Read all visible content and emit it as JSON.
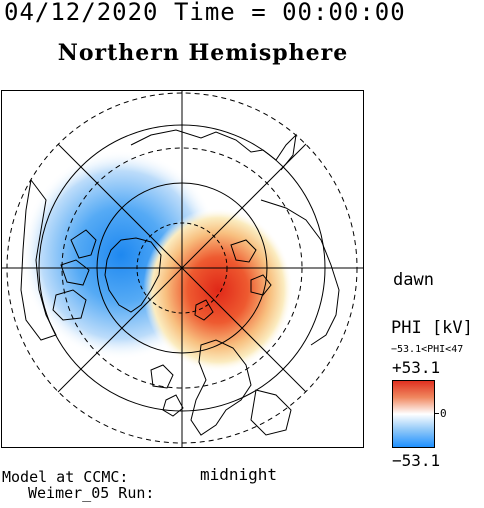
{
  "header": {
    "date_time": "04/12/2020 Time = 00:00:00",
    "hemisphere": "Northern Hemisphere"
  },
  "map": {
    "projection": "polar stereographic, north pole centered",
    "orientation_labels": {
      "right": "dawn",
      "bottom": "midnight"
    },
    "pattern": {
      "negative_cell": "dusk side, blue (left)",
      "positive_cell": "dawn side, red (right)"
    }
  },
  "colorbar": {
    "title": "PHI [kV]",
    "range_text": "−53.1<PHI<47",
    "max_label": "+53.1",
    "min_label": "−53.1",
    "zero_label": "0",
    "colors": {
      "max": "#e03020",
      "mid": "#ffffff",
      "min": "#1e90ff"
    }
  },
  "footer": {
    "model_line1": "Model at CCMC:",
    "model_line2": "Weimer_05 Run:"
  }
}
